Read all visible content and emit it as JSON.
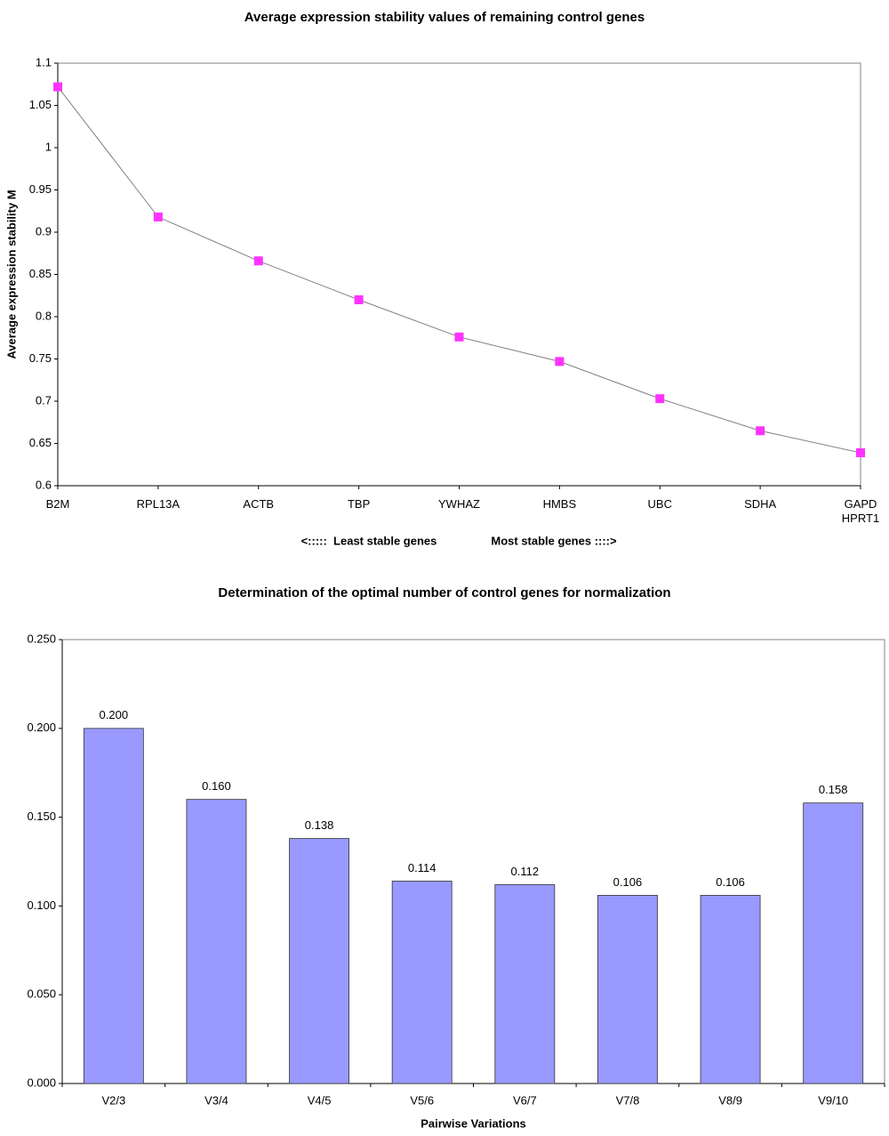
{
  "chart_data": [
    {
      "type": "line",
      "title": "Average expression stability values of remaining control genes",
      "ylabel": "Average expression stability M",
      "annotations": [
        "<:::::  Least stable genes",
        "Most stable genes ::::>"
      ],
      "categories": [
        "B2M",
        "RPL13A",
        "ACTB",
        "TBP",
        "YWHAZ",
        "HMBS",
        "UBC",
        "SDHA",
        "GAPD\nHPRT1"
      ],
      "series": [
        {
          "name": "Average expression stability M",
          "color": "#ff33ff",
          "values": [
            1.072,
            0.918,
            0.866,
            0.82,
            0.776,
            0.747,
            0.703,
            0.665,
            0.639
          ]
        }
      ],
      "line_color": "#808080",
      "ylim": [
        0.6,
        1.1
      ],
      "yticks": [
        0.6,
        0.65,
        0.7,
        0.75,
        0.8,
        0.85,
        0.9,
        0.95,
        1,
        1.05,
        1.1
      ],
      "grid": false
    },
    {
      "type": "bar",
      "title": "Determination of the optimal number of control genes for normalization",
      "xlabel": "Pairwise Variations",
      "categories": [
        "V2/3",
        "V3/4",
        "V4/5",
        "V5/6",
        "V6/7",
        "V7/8",
        "V8/9",
        "V9/10"
      ],
      "values": [
        0.2,
        0.16,
        0.138,
        0.114,
        0.112,
        0.106,
        0.106,
        0.158
      ],
      "value_labels": [
        "0.200",
        "0.160",
        "0.138",
        "0.114",
        "0.112",
        "0.106",
        "0.106",
        "0.158"
      ],
      "color": "#9999ff",
      "ylim": [
        0,
        0.25
      ],
      "yticks": [
        {
          "value": 0,
          "label": "0.000"
        },
        {
          "value": 0.05,
          "label": "0.050"
        },
        {
          "value": 0.1,
          "label": "0.100"
        },
        {
          "value": 0.15,
          "label": "0.150"
        },
        {
          "value": 0.2,
          "label": "0.200"
        },
        {
          "value": 0.25,
          "label": "0.250"
        }
      ],
      "grid": false
    }
  ]
}
